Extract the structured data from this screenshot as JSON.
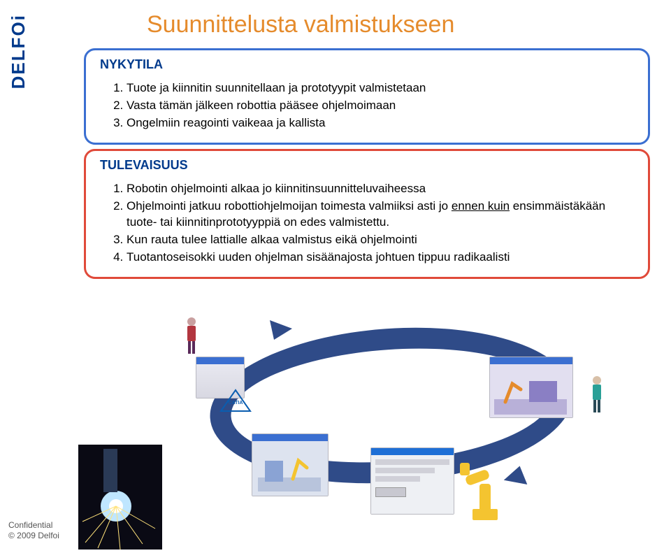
{
  "sidebar": {
    "logo_text": "DELFOi"
  },
  "title": {
    "text": "Suunnittelusta valmistukseen",
    "color": "#e58b2c"
  },
  "nykytila": {
    "heading": "NYKYTILA",
    "heading_color": "#003a8c",
    "border_color": "#3b6fd1",
    "items": [
      "Tuote ja kiinnitin suunnitellaan ja prototyypit valmistetaan",
      "Vasta tämän jälkeen robottia pääsee ohjelmoimaan",
      "Ongelmiin reagointi vaikeaa ja kallista"
    ]
  },
  "tulevaisuus": {
    "heading": "TULEVAISUUS",
    "heading_color": "#003a8c",
    "border_color": "#e04a3a",
    "items_html": [
      "Robotin ohjelmointi alkaa jo kiinnitinsuunnitteluvaiheessa",
      "Ohjelmointi jatkuu robottiohjelmoijan toimesta valmiiksi asti jo <span class=\"underline\">ennen kuin</span> ensimmäistäkään tuote- tai kiinnitinprototyyppiä on edes valmistettu.",
      "Kun rauta tulee lattialle alkaa valmistus eikä ohjelmointi",
      "Tuotantoseisokki uuden ohjelman sisäänajosta johtuen tippuu radikaalisti"
    ]
  },
  "footer": {
    "line1": "Confidential",
    "line2": "© 2009 Delfoi"
  },
  "colors": {
    "oval": "#2f4b88",
    "title": "#e58b2c",
    "heading": "#003a8c",
    "robot_yellow": "#f4c430",
    "blue_panel": "#3b6fd1"
  }
}
